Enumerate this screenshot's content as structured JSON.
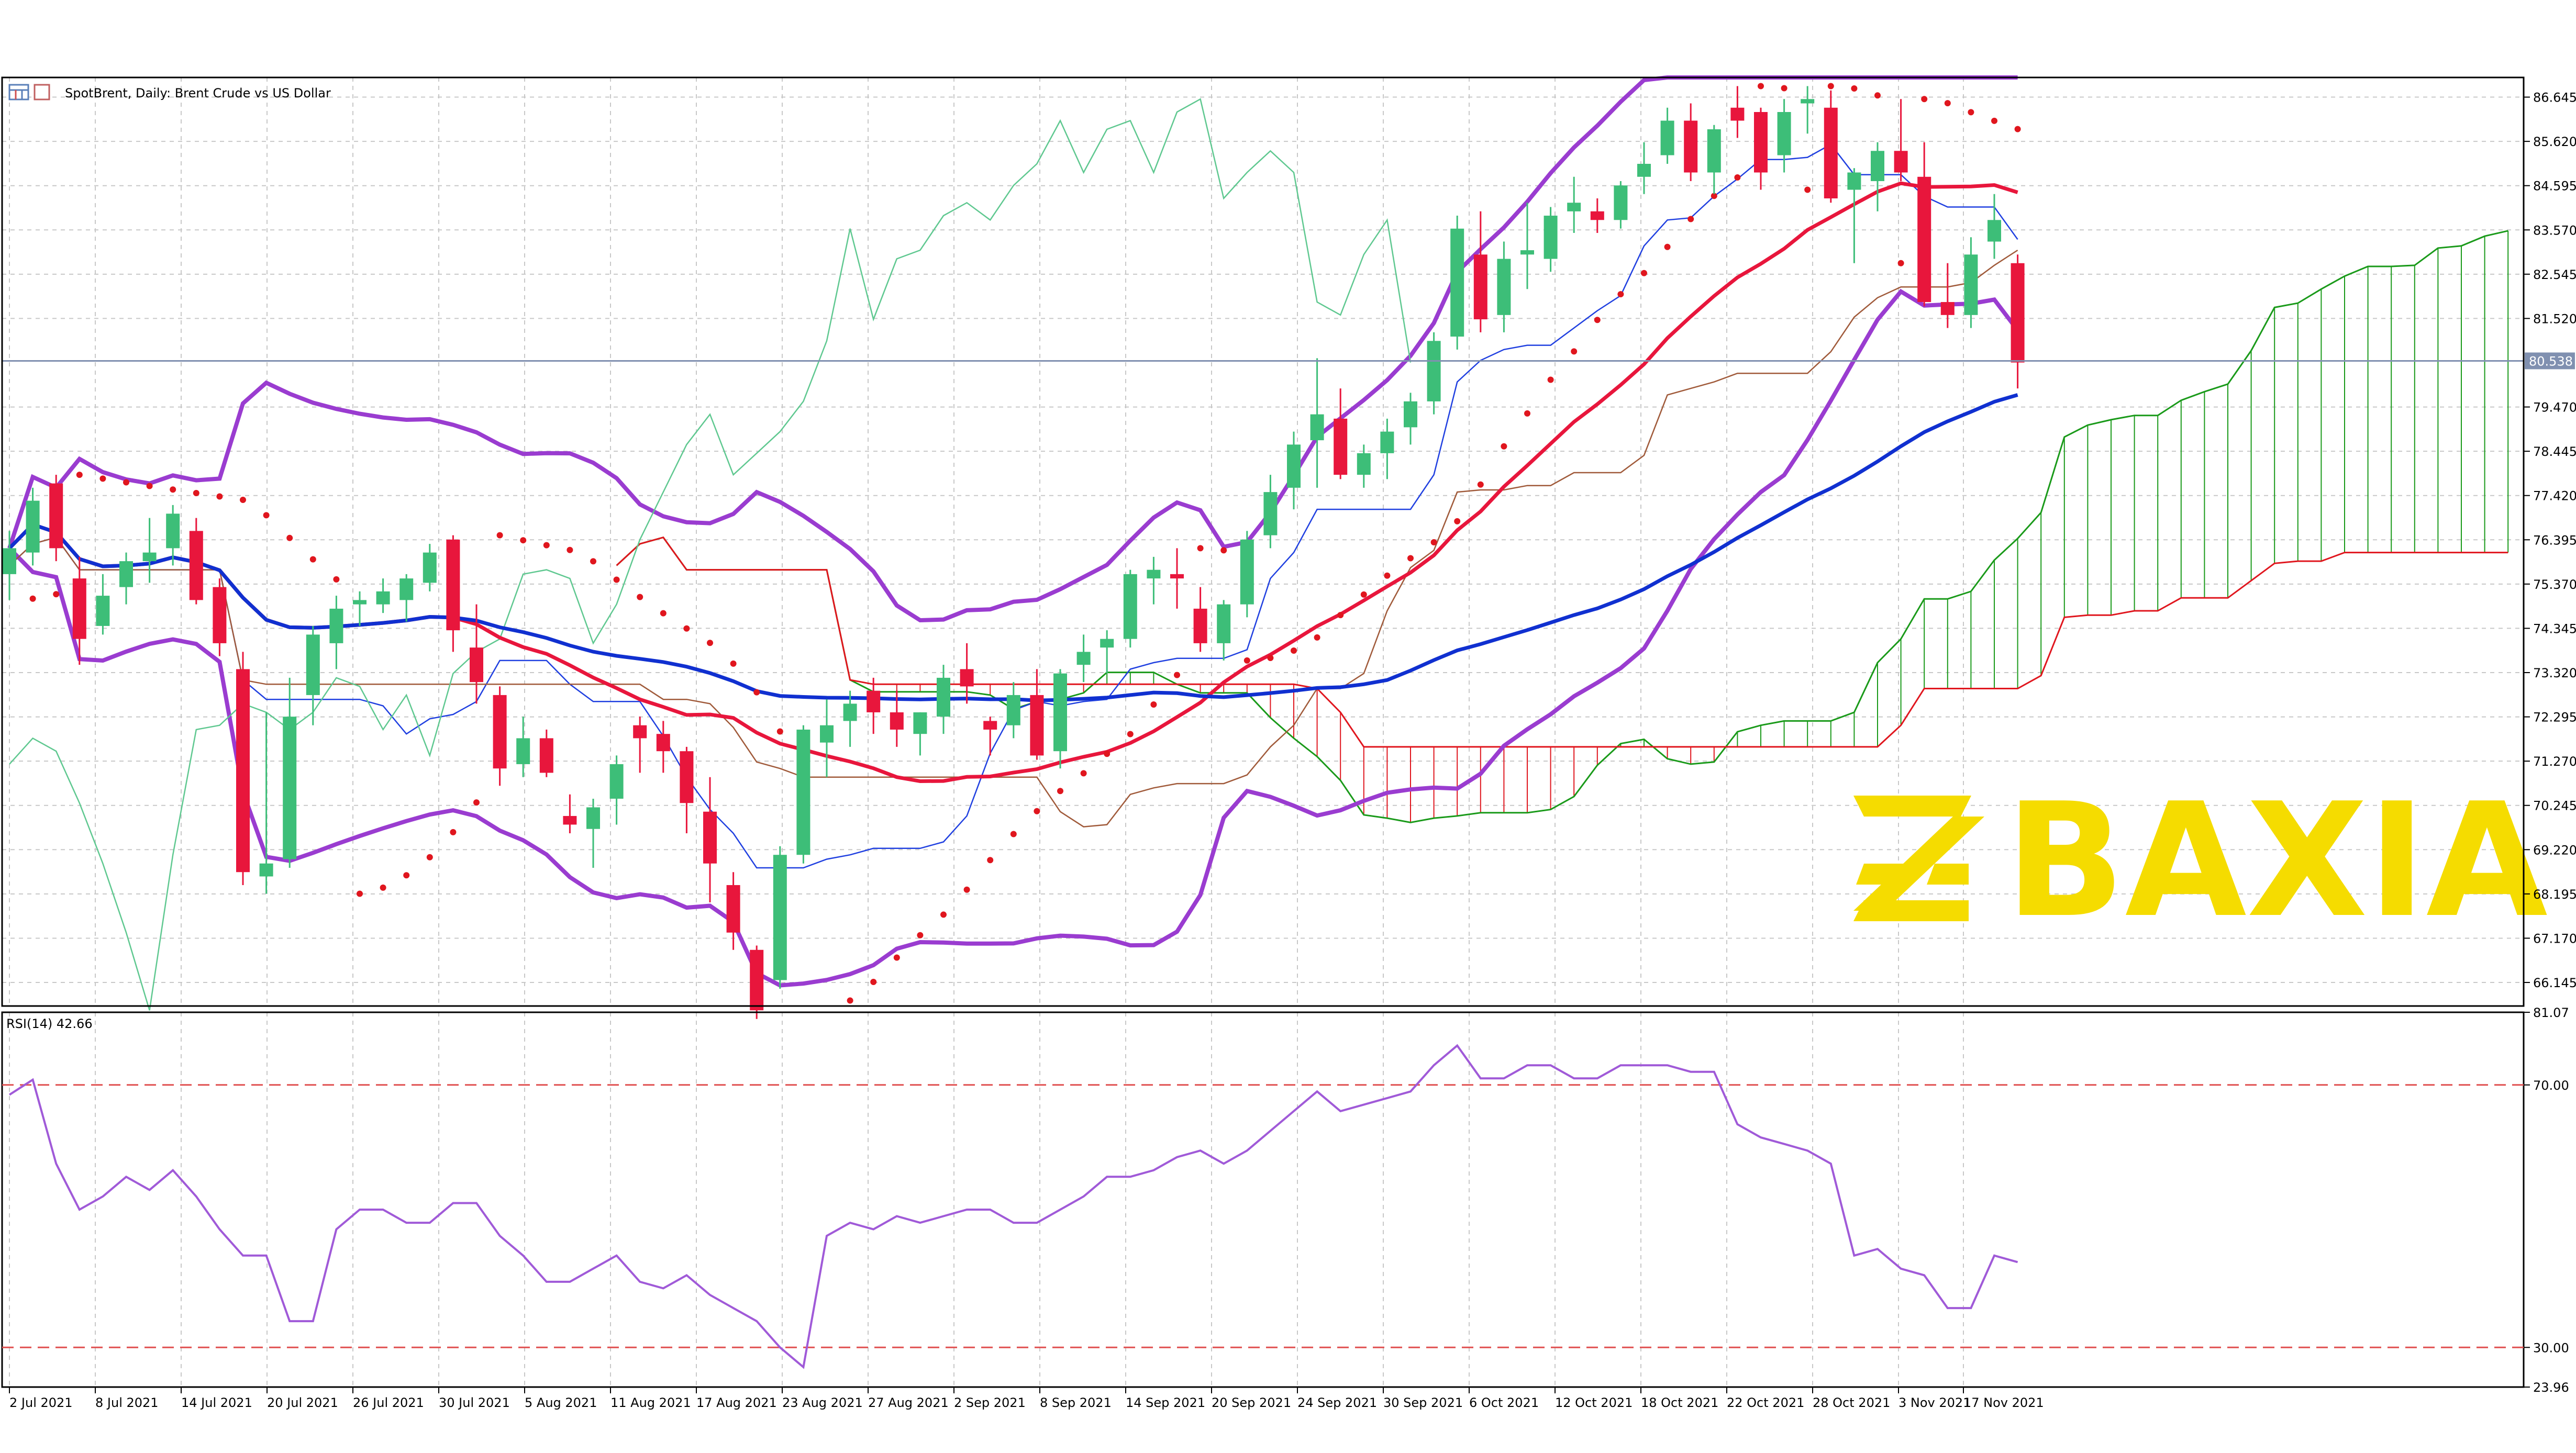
{
  "header": {
    "title": "SpotBrent, Daily:  Brent Crude vs US Dollar",
    "icon": "chart-window-icon"
  },
  "rsi_label": "RSI(14) 42.66",
  "current_price_label": "80.538",
  "watermark": {
    "text": "BAXIA",
    "color": "#F5DC00"
  },
  "colors": {
    "bull": "#3DBE78",
    "bear": "#E8163C",
    "bollinger": "#9A3CD0",
    "ma_red": "#E8163C",
    "ma_blue": "#1030D0",
    "rsi": "#A05AD8",
    "psar": "#E0161E",
    "kumo_bull": "#1A9A1A",
    "kumo_bear": "#E0161E"
  },
  "chart_data": [
    {
      "type": "candlestick",
      "name": "Brent daily price",
      "y_ticks": [
        "86.645",
        "85.620",
        "84.595",
        "83.570",
        "82.545",
        "81.520",
        "79.470",
        "78.445",
        "77.420",
        "76.395",
        "75.370",
        "74.345",
        "73.320",
        "72.295",
        "71.270",
        "70.245",
        "69.220",
        "68.195",
        "67.170",
        "66.145"
      ],
      "ylim": [
        65.6,
        87.1
      ],
      "x_labels": [
        "2 Jul 2021",
        "8 Jul 2021",
        "14 Jul 2021",
        "20 Jul 2021",
        "26 Jul 2021",
        "30 Jul 2021",
        "5 Aug 2021",
        "11 Aug 2021",
        "17 Aug 2021",
        "23 Aug 2021",
        "27 Aug 2021",
        "2 Sep 2021",
        "8 Sep 2021",
        "14 Sep 2021",
        "20 Sep 2021",
        "24 Sep 2021",
        "30 Sep 2021",
        "6 Oct 2021",
        "12 Oct 2021",
        "18 Oct 2021",
        "22 Oct 2021",
        "28 Oct 2021",
        "3 Nov 2021",
        "17 Nov 2021"
      ],
      "current_price": 80.538,
      "ohlc": [
        [
          75.6,
          76.6,
          75.0,
          76.2
        ],
        [
          76.1,
          77.6,
          75.8,
          77.3
        ],
        [
          77.7,
          77.9,
          75.9,
          76.2
        ],
        [
          75.5,
          76.0,
          73.5,
          74.1
        ],
        [
          74.4,
          75.6,
          74.2,
          75.1
        ],
        [
          75.3,
          76.1,
          74.9,
          75.9
        ],
        [
          75.9,
          76.9,
          75.4,
          76.1
        ],
        [
          76.2,
          77.2,
          75.8,
          77.0
        ],
        [
          76.6,
          76.9,
          74.9,
          75.0
        ],
        [
          75.3,
          75.5,
          73.7,
          74.0
        ],
        [
          73.4,
          73.8,
          68.4,
          68.7
        ],
        [
          68.6,
          72.4,
          68.2,
          68.9
        ],
        [
          69.0,
          73.2,
          68.8,
          72.3
        ],
        [
          72.8,
          74.4,
          72.1,
          74.2
        ],
        [
          74.0,
          75.1,
          73.4,
          74.8
        ],
        [
          74.9,
          75.2,
          74.4,
          75.0
        ],
        [
          74.9,
          75.5,
          74.7,
          75.2
        ],
        [
          75.0,
          75.6,
          74.5,
          75.5
        ],
        [
          75.4,
          76.3,
          75.2,
          76.1
        ],
        [
          76.4,
          76.5,
          73.8,
          74.3
        ],
        [
          73.9,
          74.9,
          72.6,
          73.1
        ],
        [
          72.8,
          73.0,
          70.7,
          71.1
        ],
        [
          71.2,
          72.3,
          70.9,
          71.8
        ],
        [
          71.8,
          72.0,
          70.9,
          71.0
        ],
        [
          70.0,
          70.5,
          69.6,
          69.8
        ],
        [
          69.7,
          70.4,
          68.8,
          70.2
        ],
        [
          70.4,
          71.4,
          69.8,
          71.2
        ],
        [
          72.1,
          72.3,
          71.0,
          71.8
        ],
        [
          71.9,
          72.2,
          71.0,
          71.5
        ],
        [
          71.5,
          71.6,
          69.6,
          70.3
        ],
        [
          70.1,
          70.9,
          68.0,
          68.9
        ],
        [
          68.4,
          68.7,
          66.9,
          67.3
        ],
        [
          66.9,
          67.0,
          65.3,
          65.5
        ],
        [
          66.2,
          69.3,
          66.0,
          69.1
        ],
        [
          69.1,
          72.1,
          68.9,
          72.0
        ],
        [
          71.7,
          72.7,
          70.9,
          72.1
        ],
        [
          72.2,
          72.9,
          71.6,
          72.6
        ],
        [
          72.9,
          73.2,
          71.9,
          72.4
        ],
        [
          72.4,
          72.9,
          71.6,
          72.0
        ],
        [
          71.9,
          72.4,
          71.4,
          72.4
        ],
        [
          72.3,
          73.5,
          71.9,
          73.2
        ],
        [
          73.4,
          74.0,
          72.6,
          73.0
        ],
        [
          72.2,
          72.3,
          71.4,
          72.0
        ],
        [
          72.1,
          73.1,
          71.8,
          72.8
        ],
        [
          72.8,
          73.4,
          71.3,
          71.4
        ],
        [
          71.5,
          73.4,
          71.1,
          73.3
        ],
        [
          73.5,
          74.2,
          73.1,
          73.8
        ],
        [
          73.9,
          74.3,
          73.3,
          74.1
        ],
        [
          74.1,
          75.7,
          73.9,
          75.6
        ],
        [
          75.5,
          76.0,
          74.9,
          75.7
        ],
        [
          75.6,
          76.2,
          74.8,
          75.5
        ],
        [
          74.8,
          75.3,
          73.8,
          74.0
        ],
        [
          74.0,
          75.0,
          73.6,
          74.9
        ],
        [
          74.9,
          76.6,
          74.6,
          76.4
        ],
        [
          76.5,
          77.9,
          76.2,
          77.5
        ],
        [
          77.6,
          78.9,
          77.1,
          78.6
        ],
        [
          78.7,
          80.6,
          77.6,
          79.3
        ],
        [
          79.2,
          79.9,
          77.8,
          77.9
        ],
        [
          77.9,
          78.6,
          77.6,
          78.4
        ],
        [
          78.4,
          79.2,
          77.8,
          78.9
        ],
        [
          79.0,
          79.8,
          78.6,
          79.6
        ],
        [
          79.6,
          81.2,
          79.3,
          81.0
        ],
        [
          81.1,
          83.9,
          80.8,
          83.6
        ],
        [
          83.0,
          84.0,
          81.2,
          81.5
        ],
        [
          81.6,
          83.3,
          81.2,
          82.9
        ],
        [
          83.0,
          84.2,
          82.2,
          83.1
        ],
        [
          82.9,
          84.1,
          82.6,
          83.9
        ],
        [
          84.0,
          84.8,
          83.5,
          84.2
        ],
        [
          84.0,
          84.3,
          83.5,
          83.8
        ],
        [
          83.8,
          84.7,
          83.6,
          84.6
        ],
        [
          84.8,
          85.6,
          84.4,
          85.1
        ],
        [
          85.3,
          86.4,
          85.1,
          86.1
        ],
        [
          86.1,
          86.5,
          84.7,
          84.9
        ],
        [
          84.9,
          86.0,
          84.4,
          85.9
        ],
        [
          86.4,
          86.9,
          85.7,
          86.1
        ],
        [
          86.3,
          86.4,
          84.5,
          84.9
        ],
        [
          85.3,
          86.6,
          84.9,
          86.3
        ],
        [
          86.5,
          86.9,
          85.8,
          86.6
        ],
        [
          86.4,
          86.8,
          84.2,
          84.3
        ],
        [
          84.5,
          85.0,
          82.8,
          84.9
        ],
        [
          84.7,
          85.6,
          84.0,
          85.4
        ],
        [
          85.4,
          86.6,
          84.7,
          84.9
        ],
        [
          84.8,
          85.6,
          81.8,
          81.9
        ],
        [
          81.9,
          82.8,
          81.3,
          81.6
        ],
        [
          81.6,
          83.4,
          81.3,
          83.0
        ],
        [
          83.3,
          84.4,
          82.9,
          83.8
        ],
        [
          82.8,
          83.0,
          79.9,
          80.5
        ]
      ]
    },
    {
      "type": "line",
      "name": "RSI(14)",
      "ylim": [
        23.96,
        81.07
      ],
      "y_ticks": [
        "81.07",
        "70.00",
        "30.00",
        "23.96"
      ],
      "levels": [
        70,
        30
      ],
      "values": [
        68.5,
        70.8,
        58,
        51,
        53,
        56,
        54,
        57,
        53,
        48,
        44,
        44,
        34,
        34,
        48,
        51,
        51,
        49,
        49,
        52,
        52,
        47,
        44,
        40,
        40,
        42,
        44,
        40,
        39,
        41,
        38,
        36,
        34,
        30,
        27,
        47,
        49,
        48,
        50,
        49,
        50,
        51,
        51,
        49,
        49,
        51,
        53,
        56,
        56,
        57,
        59,
        60,
        58,
        60,
        63,
        66,
        69,
        66,
        67,
        68,
        69,
        73,
        76,
        71,
        71,
        73,
        73,
        71,
        71,
        73,
        73,
        73,
        72,
        72,
        64,
        62,
        61,
        60,
        58,
        44,
        45,
        42,
        41,
        36,
        36,
        44,
        43
      ]
    }
  ]
}
